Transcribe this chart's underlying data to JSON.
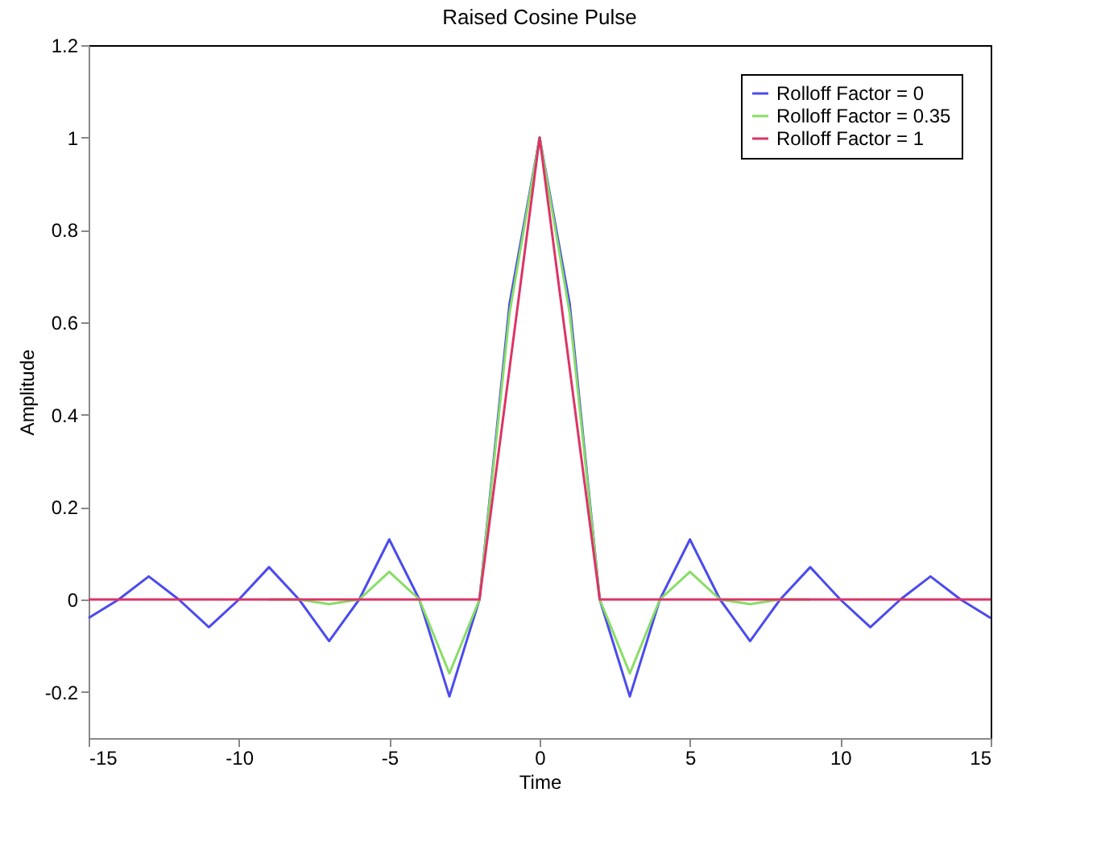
{
  "chart_data": {
    "type": "line",
    "title": "Raised Cosine Pulse",
    "xlabel": "Time",
    "ylabel": "Amplitude",
    "x": [
      -15,
      -14,
      -13,
      -12,
      -11,
      -10,
      -9,
      -8,
      -7,
      -6,
      -5,
      -4,
      -3,
      -2,
      -1,
      0,
      1,
      2,
      3,
      4,
      5,
      6,
      7,
      8,
      9,
      10,
      11,
      12,
      13,
      14,
      15
    ],
    "series": [
      {
        "name": "Rolloff Factor = 0",
        "color": "#4b4bee",
        "values": [
          -0.04,
          0,
          0.05,
          0,
          -0.06,
          0,
          0.07,
          0,
          -0.09,
          0,
          0.13,
          0,
          -0.21,
          0,
          0.64,
          1,
          0.64,
          0,
          -0.21,
          0,
          0.13,
          0,
          -0.09,
          0,
          0.07,
          0,
          -0.06,
          0,
          0.05,
          0,
          -0.04
        ]
      },
      {
        "name": "Rolloff Factor = 0.35",
        "color": "#88dd66",
        "values": [
          null,
          null,
          null,
          null,
          null,
          null,
          0,
          0,
          -0.01,
          0,
          0.06,
          0,
          -0.16,
          0,
          0.62,
          1,
          0.62,
          0,
          -0.16,
          0,
          0.06,
          0,
          -0.01,
          0,
          0,
          null,
          null,
          null,
          null,
          null,
          null
        ]
      },
      {
        "name": "Rolloff Factor = 1",
        "color": "#dd3366",
        "values": [
          0,
          0,
          0,
          0,
          0,
          0,
          0,
          0,
          0,
          0,
          0,
          0,
          0,
          0,
          0.5,
          1,
          0.5,
          0,
          0,
          0,
          0,
          0,
          0,
          0,
          0,
          0,
          0,
          0,
          0,
          0,
          0
        ]
      }
    ],
    "xlim": [
      -15,
      15
    ],
    "xticks": [
      -15,
      -10,
      -5,
      0,
      5,
      10,
      15
    ],
    "ylim": [
      -0.3,
      1.2
    ],
    "yticks": [
      -0.2,
      0,
      0.2,
      0.4,
      0.6,
      0.8,
      1,
      1.2
    ],
    "grid": false,
    "legend": "top right",
    "line_style": "solid",
    "marker": "none"
  }
}
